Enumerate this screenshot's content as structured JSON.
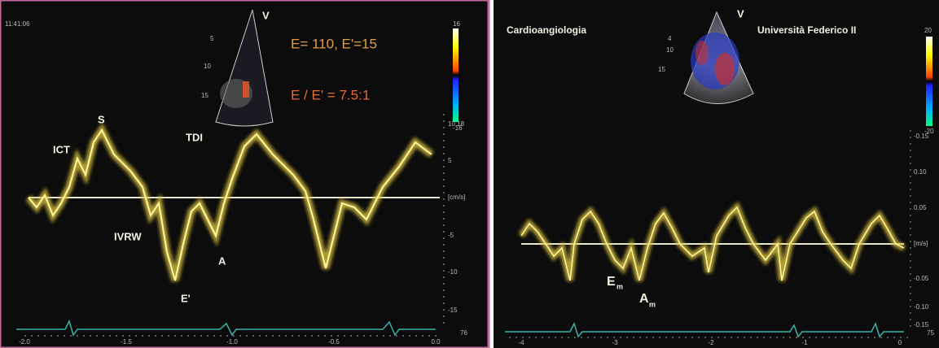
{
  "left_panel": {
    "time": "11:41:06",
    "probe_marker": "V",
    "depth_labels": [
      "5",
      "10",
      "15"
    ],
    "measure_1": "E= 110, E'=15",
    "measure_2": "E / E' = 7.5:1",
    "color_scale": {
      "top": "16",
      "bottom": "-16"
    },
    "wave_labels": {
      "ict": "ICT",
      "s": "S",
      "tdi": "TDI",
      "ivrw": "IVRW",
      "a": "A",
      "e_prime": "E'"
    },
    "y_scale": [
      "10.18",
      "5",
      "[cm/s]",
      "-5",
      "-10",
      "-15"
    ],
    "x_scale": [
      "-2.0",
      "-1.5",
      "-1.0",
      "-0.5",
      "0.0"
    ],
    "heart_rate": "76"
  },
  "right_panel": {
    "institution_left": "Cardioangiologia",
    "institution_right": "Università Federico II",
    "probe_marker": "V",
    "depth_labels": [
      "4",
      "10",
      "15"
    ],
    "color_scale": {
      "top": "20",
      "bottom": "-20"
    },
    "wave_labels": {
      "e": "E",
      "e_sub": "m",
      "a": "A",
      "a_sub": "m"
    },
    "y_scale": [
      "-0.15",
      "0.10",
      "0.05",
      "[m/s]",
      "-0.05",
      "-0.10",
      "-0.15"
    ],
    "x_scale": [
      "-4",
      "-3",
      "-2",
      "-1",
      "0"
    ],
    "heart_rate": "75"
  }
}
